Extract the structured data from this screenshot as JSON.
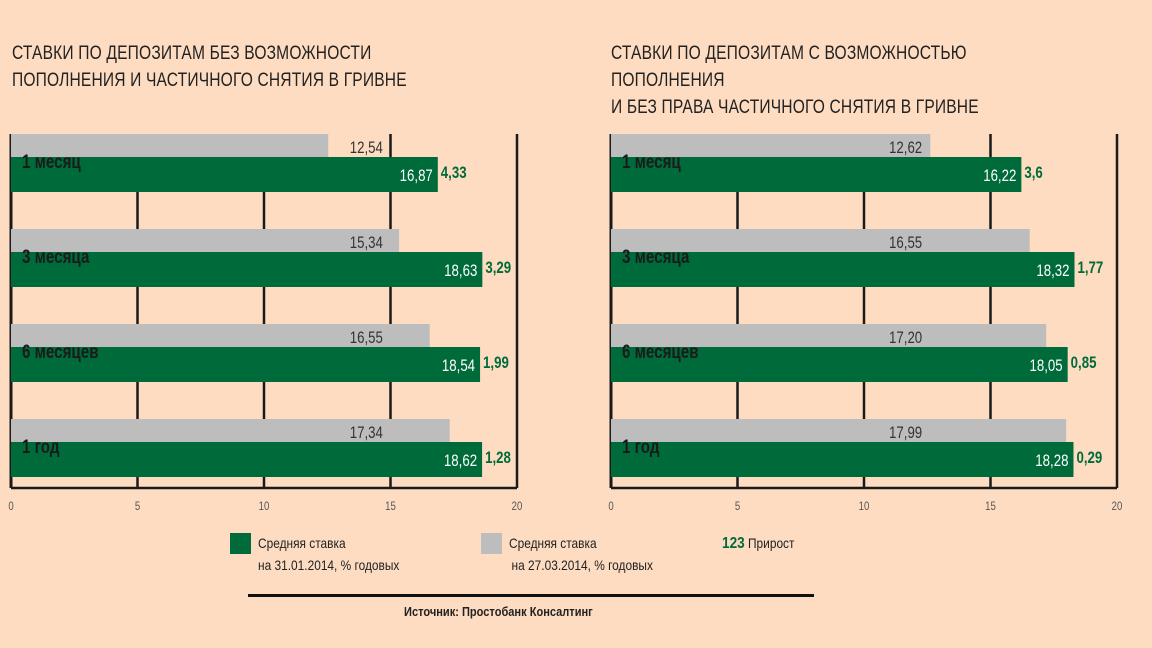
{
  "colors": {
    "background": "#fddcc1",
    "green": "#006b3a",
    "gray": "#bdbdbd",
    "growth_text": "#006b3a"
  },
  "chart_data": [
    {
      "type": "bar",
      "title": "СТАВКИ ПО ДЕПОЗИТАМ БЕЗ ВОЗМОЖНОСТИ\nПОПОЛНЕНИЯ И ЧАСТИЧНОГО СНЯТИЯ В ГРИВНЕ",
      "categories": [
        "1 месяц",
        "3 месяца",
        "6 месяцев",
        "1 год"
      ],
      "series": [
        {
          "name": "Средняя ставка на 27.03.2014, % годовых",
          "color": "gray",
          "values": [
            12.54,
            15.34,
            16.55,
            17.34
          ],
          "labels": [
            "12,54",
            "15,34",
            "16,55",
            "17,34"
          ]
        },
        {
          "name": "Средняя ставка на 31.01.2014, % годовых",
          "color": "green",
          "values": [
            16.87,
            18.63,
            18.54,
            18.62
          ],
          "labels": [
            "16,87",
            "18,63",
            "18,54",
            "18,62"
          ]
        }
      ],
      "growth": [
        "4,33",
        "3,29",
        "1,99",
        "1,28"
      ],
      "xlim": [
        0,
        20
      ],
      "xticks": [
        "0",
        "5",
        "10",
        "15",
        "20"
      ],
      "grid": true
    },
    {
      "type": "bar",
      "title": "СТАВКИ ПО ДЕПОЗИТАМ С ВОЗМОЖНОСТЬЮ ПОПОЛНЕНИЯ\nИ БЕЗ ПРАВА ЧАСТИЧНОГО СНЯТИЯ В ГРИВНЕ",
      "categories": [
        "1 месяц",
        "3 месяца",
        "6 месяцев",
        "1 год"
      ],
      "series": [
        {
          "name": "Средняя ставка на 27.03.2014, % годовых",
          "color": "gray",
          "values": [
            12.62,
            16.55,
            17.2,
            17.99
          ],
          "labels": [
            "12,62",
            "16,55",
            "17,20",
            "17,99"
          ]
        },
        {
          "name": "Средняя ставка на 31.01.2014, % годовых",
          "color": "green",
          "values": [
            16.22,
            18.32,
            18.05,
            18.28
          ],
          "labels": [
            "16,22",
            "18,32",
            "18,05",
            "18,28"
          ]
        }
      ],
      "growth": [
        "3,6",
        "1,77",
        "0,85",
        "0,29"
      ],
      "xlim": [
        0,
        20
      ],
      "xticks": [
        "0",
        "5",
        "10",
        "15",
        "20"
      ],
      "grid": true
    }
  ],
  "legend": {
    "green_line1": "Средняя ставка",
    "green_line2": "на 31.01.2014, % годовых",
    "gray_line1": "Средняя ставка",
    "gray_line2": "на 27.03.2014, % годовых",
    "growth_sample": "123",
    "growth_label": "Прирост"
  },
  "source": "Источник: Простобанк Консалтинг"
}
